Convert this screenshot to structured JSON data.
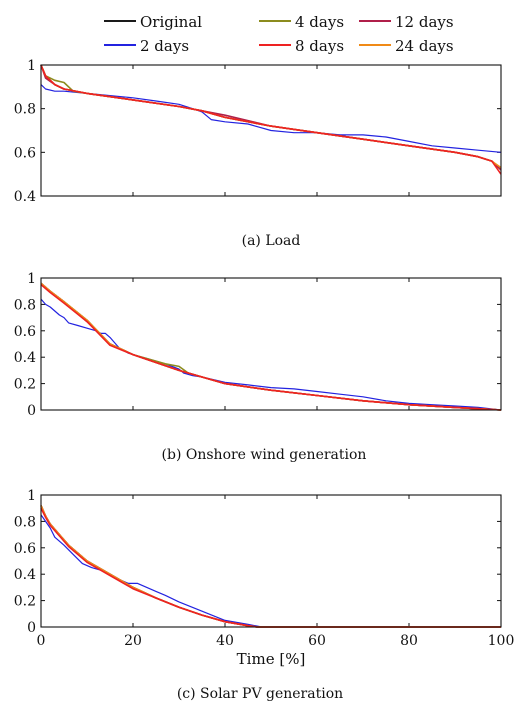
{
  "legend": [
    {
      "name": "Original",
      "color": "#1a1a1a"
    },
    {
      "name": "4 days",
      "color": "#8c8c1e"
    },
    {
      "name": "12 days",
      "color": "#b01f4a"
    },
    {
      "name": "2 days",
      "color": "#2323e0"
    },
    {
      "name": "8 days",
      "color": "#ee2222"
    },
    {
      "name": "24 days",
      "color": "#f08a16"
    }
  ],
  "chart_data": [
    {
      "type": "line",
      "caption": "(a) Load",
      "xlim": [
        0,
        100
      ],
      "ylim": [
        0.4,
        1.0
      ],
      "yticks": [
        "0.4",
        "0.6",
        "0.8",
        "1"
      ],
      "series": [
        {
          "name": "Original",
          "x": [
            0,
            1,
            3,
            5,
            10,
            20,
            30,
            35,
            40,
            50,
            60,
            70,
            80,
            90,
            95,
            98,
            100
          ],
          "y": [
            1.0,
            0.95,
            0.91,
            0.89,
            0.87,
            0.84,
            0.81,
            0.79,
            0.76,
            0.72,
            0.69,
            0.66,
            0.63,
            0.6,
            0.58,
            0.56,
            0.52
          ]
        },
        {
          "name": "4 days",
          "x": [
            0,
            1,
            3,
            5,
            7,
            10,
            20,
            30,
            35,
            40,
            50,
            60,
            70,
            80,
            90,
            95,
            98,
            100
          ],
          "y": [
            1.0,
            0.95,
            0.93,
            0.92,
            0.88,
            0.87,
            0.84,
            0.81,
            0.79,
            0.76,
            0.72,
            0.69,
            0.66,
            0.63,
            0.6,
            0.58,
            0.56,
            0.52
          ]
        },
        {
          "name": "12 days",
          "x": [
            0,
            1,
            3,
            5,
            10,
            20,
            30,
            35,
            40,
            50,
            60,
            70,
            80,
            90,
            95,
            98,
            100
          ],
          "y": [
            1.0,
            0.94,
            0.91,
            0.89,
            0.87,
            0.84,
            0.81,
            0.79,
            0.77,
            0.72,
            0.69,
            0.66,
            0.63,
            0.6,
            0.58,
            0.56,
            0.52
          ]
        },
        {
          "name": "2 days",
          "x": [
            0,
            1,
            3,
            5,
            10,
            15,
            20,
            25,
            30,
            33,
            35,
            37,
            40,
            45,
            50,
            55,
            60,
            65,
            70,
            75,
            80,
            85,
            90,
            95,
            100
          ],
          "y": [
            0.91,
            0.89,
            0.88,
            0.88,
            0.87,
            0.86,
            0.85,
            0.835,
            0.82,
            0.8,
            0.785,
            0.75,
            0.74,
            0.73,
            0.7,
            0.69,
            0.69,
            0.68,
            0.68,
            0.67,
            0.65,
            0.63,
            0.62,
            0.61,
            0.6
          ]
        },
        {
          "name": "8 days",
          "x": [
            0,
            1,
            3,
            5,
            10,
            20,
            30,
            35,
            40,
            50,
            60,
            70,
            80,
            90,
            95,
            98,
            100
          ],
          "y": [
            1.0,
            0.95,
            0.91,
            0.89,
            0.87,
            0.84,
            0.81,
            0.79,
            0.76,
            0.72,
            0.69,
            0.66,
            0.63,
            0.6,
            0.58,
            0.56,
            0.5
          ]
        },
        {
          "name": "24 days",
          "x": [
            0,
            1,
            3,
            5,
            10,
            20,
            30,
            35,
            40,
            50,
            60,
            70,
            80,
            90,
            95,
            98,
            100
          ],
          "y": [
            1.0,
            0.95,
            0.91,
            0.89,
            0.87,
            0.84,
            0.81,
            0.79,
            0.76,
            0.72,
            0.69,
            0.66,
            0.63,
            0.6,
            0.58,
            0.56,
            0.53
          ]
        }
      ]
    },
    {
      "type": "line",
      "caption": "(b) Onshore wind generation",
      "xlim": [
        0,
        100
      ],
      "ylim": [
        0,
        1.0
      ],
      "yticks": [
        "0",
        "0.2",
        "0.4",
        "0.6",
        "0.8",
        "1"
      ],
      "series": [
        {
          "name": "Original",
          "x": [
            0,
            2,
            5,
            10,
            15,
            20,
            25,
            30,
            35,
            40,
            50,
            60,
            70,
            80,
            90,
            95,
            100
          ],
          "y": [
            0.96,
            0.9,
            0.82,
            0.68,
            0.5,
            0.42,
            0.36,
            0.3,
            0.25,
            0.2,
            0.15,
            0.11,
            0.07,
            0.04,
            0.02,
            0.01,
            0.0
          ]
        },
        {
          "name": "4 days",
          "x": [
            0,
            2,
            5,
            10,
            15,
            20,
            25,
            27,
            30,
            32,
            35,
            40,
            50,
            60,
            70,
            80,
            90,
            95,
            100
          ],
          "y": [
            0.96,
            0.9,
            0.82,
            0.68,
            0.5,
            0.42,
            0.37,
            0.35,
            0.33,
            0.28,
            0.25,
            0.2,
            0.15,
            0.11,
            0.07,
            0.04,
            0.02,
            0.01,
            0.0
          ]
        },
        {
          "name": "12 days",
          "x": [
            0,
            2,
            5,
            10,
            15,
            20,
            25,
            30,
            35,
            40,
            50,
            60,
            70,
            80,
            90,
            95,
            100
          ],
          "y": [
            0.96,
            0.9,
            0.82,
            0.67,
            0.5,
            0.42,
            0.36,
            0.3,
            0.25,
            0.2,
            0.15,
            0.11,
            0.07,
            0.04,
            0.02,
            0.01,
            0.0
          ]
        },
        {
          "name": "2 days",
          "x": [
            0,
            1,
            2,
            3,
            4,
            5,
            6,
            8,
            10,
            12,
            13,
            14,
            15,
            17,
            19,
            21,
            23,
            25,
            27,
            30,
            31,
            33,
            35,
            40,
            45,
            50,
            55,
            60,
            65,
            70,
            75,
            80,
            85,
            90,
            95,
            100
          ],
          "y": [
            0.84,
            0.8,
            0.78,
            0.75,
            0.72,
            0.7,
            0.66,
            0.64,
            0.62,
            0.6,
            0.58,
            0.58,
            0.55,
            0.47,
            0.43,
            0.41,
            0.39,
            0.37,
            0.35,
            0.31,
            0.28,
            0.26,
            0.25,
            0.21,
            0.19,
            0.17,
            0.16,
            0.14,
            0.12,
            0.1,
            0.07,
            0.05,
            0.04,
            0.03,
            0.02,
            0.0
          ]
        },
        {
          "name": "8 days",
          "x": [
            0,
            2,
            5,
            10,
            15,
            20,
            25,
            30,
            35,
            40,
            50,
            60,
            70,
            80,
            90,
            95,
            100
          ],
          "y": [
            0.95,
            0.89,
            0.81,
            0.67,
            0.49,
            0.42,
            0.36,
            0.3,
            0.25,
            0.2,
            0.15,
            0.11,
            0.07,
            0.04,
            0.02,
            0.01,
            0.0
          ]
        },
        {
          "name": "24 days",
          "x": [
            0,
            2,
            5,
            10,
            15,
            20,
            25,
            30,
            35,
            40,
            50,
            60,
            70,
            80,
            90,
            95,
            100
          ],
          "y": [
            0.96,
            0.9,
            0.82,
            0.68,
            0.5,
            0.42,
            0.36,
            0.3,
            0.25,
            0.2,
            0.15,
            0.11,
            0.07,
            0.04,
            0.02,
            0.01,
            0.0
          ]
        }
      ]
    },
    {
      "type": "line",
      "caption": "(c) Solar PV generation",
      "xlabel": "Time [%]",
      "xlim": [
        0,
        100
      ],
      "ylim": [
        0,
        1.0
      ],
      "yticks": [
        "0",
        "0.2",
        "0.4",
        "0.6",
        "0.8",
        "1"
      ],
      "xticks": [
        "0",
        "20",
        "40",
        "60",
        "80",
        "100"
      ],
      "series": [
        {
          "name": "Original",
          "x": [
            0,
            1,
            2,
            4,
            6,
            8,
            10,
            15,
            20,
            25,
            30,
            35,
            40,
            45,
            47,
            50,
            60,
            80,
            100
          ],
          "y": [
            0.92,
            0.84,
            0.78,
            0.7,
            0.62,
            0.56,
            0.5,
            0.4,
            0.3,
            0.22,
            0.15,
            0.09,
            0.04,
            0.01,
            0.0,
            0.0,
            0.0,
            0.0,
            0.0
          ]
        },
        {
          "name": "4 days",
          "x": [
            0,
            1,
            2,
            4,
            6,
            8,
            10,
            15,
            20,
            25,
            30,
            35,
            40,
            45,
            47,
            50,
            60,
            80,
            100
          ],
          "y": [
            0.92,
            0.84,
            0.78,
            0.7,
            0.62,
            0.56,
            0.5,
            0.4,
            0.3,
            0.22,
            0.15,
            0.09,
            0.04,
            0.01,
            0.0,
            0.0,
            0.0,
            0.0,
            0.0
          ]
        },
        {
          "name": "12 days",
          "x": [
            0,
            1,
            2,
            4,
            6,
            8,
            10,
            15,
            20,
            25,
            30,
            35,
            40,
            45,
            47,
            50,
            60,
            80,
            100
          ],
          "y": [
            0.92,
            0.84,
            0.78,
            0.7,
            0.62,
            0.56,
            0.5,
            0.4,
            0.3,
            0.22,
            0.15,
            0.09,
            0.04,
            0.01,
            0.0,
            0.0,
            0.0,
            0.0,
            0.0
          ]
        },
        {
          "name": "2 days",
          "x": [
            0,
            1,
            2,
            3,
            5,
            7,
            9,
            11,
            13,
            15,
            17,
            19,
            21,
            23,
            25,
            27,
            30,
            35,
            40,
            45,
            48,
            50,
            60,
            80,
            100
          ],
          "y": [
            0.85,
            0.8,
            0.75,
            0.68,
            0.62,
            0.55,
            0.48,
            0.45,
            0.43,
            0.4,
            0.36,
            0.33,
            0.33,
            0.3,
            0.27,
            0.24,
            0.19,
            0.12,
            0.05,
            0.02,
            0.0,
            0.0,
            0.0,
            0.0,
            0.0
          ]
        },
        {
          "name": "8 days",
          "x": [
            0,
            1,
            2,
            4,
            6,
            8,
            10,
            15,
            20,
            25,
            30,
            35,
            40,
            45,
            47,
            50,
            60,
            80,
            100
          ],
          "y": [
            0.9,
            0.83,
            0.77,
            0.69,
            0.61,
            0.55,
            0.49,
            0.39,
            0.29,
            0.22,
            0.15,
            0.09,
            0.04,
            0.01,
            0.0,
            0.0,
            0.0,
            0.0,
            0.0
          ]
        },
        {
          "name": "24 days",
          "x": [
            0,
            1,
            2,
            4,
            6,
            8,
            10,
            15,
            20,
            25,
            30,
            35,
            40,
            45,
            47,
            50,
            60,
            80,
            100
          ],
          "y": [
            0.92,
            0.84,
            0.78,
            0.7,
            0.62,
            0.56,
            0.5,
            0.4,
            0.3,
            0.22,
            0.15,
            0.09,
            0.04,
            0.01,
            0.0,
            0.0,
            0.0,
            0.0,
            0.0
          ]
        }
      ]
    }
  ]
}
